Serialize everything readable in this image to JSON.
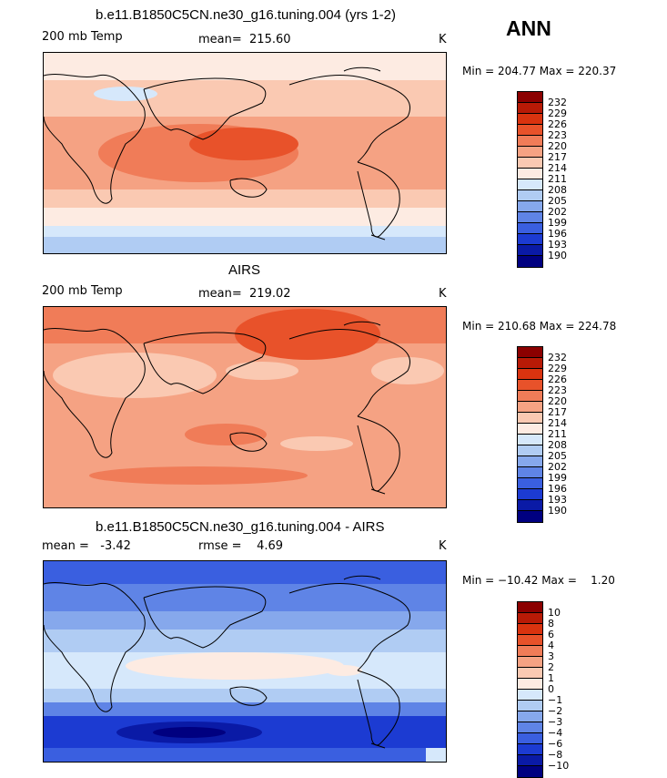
{
  "season": "ANN",
  "panels": [
    {
      "title": "b.e11.B1850C5CN.ne30_g16.tuning.004 (yrs 1-2)",
      "variable": "200 mb Temp",
      "stat": "mean=  215.60",
      "units": "K",
      "minmax": "Min = 204.77 Max = 220.37",
      "legend": {
        "labels": [
          "232",
          "229",
          "226",
          "223",
          "220",
          "217",
          "214",
          "211",
          "208",
          "205",
          "202",
          "199",
          "196",
          "193",
          "190"
        ],
        "colors": [
          "#8b0000",
          "#b81a06",
          "#d9330f",
          "#e8522a",
          "#f07c58",
          "#f5a283",
          "#fac9b2",
          "#fdebe2",
          "#d6e8fb",
          "#b0ccf3",
          "#86a8ec",
          "#5f84e6",
          "#3a5fe0",
          "#1c3bd2",
          "#0a1aa6",
          "#000080"
        ]
      }
    },
    {
      "title": "AIRS",
      "variable": "200 mb Temp",
      "stat": "mean=  219.02",
      "units": "K",
      "minmax": "Min = 210.68 Max = 224.78",
      "legend": {
        "labels": [
          "232",
          "229",
          "226",
          "223",
          "220",
          "217",
          "214",
          "211",
          "208",
          "205",
          "202",
          "199",
          "196",
          "193",
          "190"
        ],
        "colors": [
          "#8b0000",
          "#b81a06",
          "#d9330f",
          "#e8522a",
          "#f07c58",
          "#f5a283",
          "#fac9b2",
          "#fdebe2",
          "#d6e8fb",
          "#b0ccf3",
          "#86a8ec",
          "#5f84e6",
          "#3a5fe0",
          "#1c3bd2",
          "#0a1aa6",
          "#000080"
        ]
      }
    },
    {
      "title": "b.e11.B1850C5CN.ne30_g16.tuning.004 - AIRS",
      "variable": "mean =   -3.42",
      "stat": "rmse =    4.69",
      "units": "K",
      "minmax": "Min = −10.42 Max =    1.20",
      "legend": {
        "labels": [
          "10",
          "8",
          "6",
          "4",
          "3",
          "2",
          "1",
          "0",
          "−1",
          "−2",
          "−3",
          "−4",
          "−6",
          "−8",
          "−10"
        ],
        "colors": [
          "#8b0000",
          "#b81a06",
          "#d9330f",
          "#e8522a",
          "#f07c58",
          "#f5a283",
          "#fac9b2",
          "#fdebe2",
          "#d6e8fb",
          "#b0ccf3",
          "#86a8ec",
          "#5f84e6",
          "#3a5fe0",
          "#1c3bd2",
          "#0a1aa6",
          "#000080"
        ]
      }
    }
  ]
}
